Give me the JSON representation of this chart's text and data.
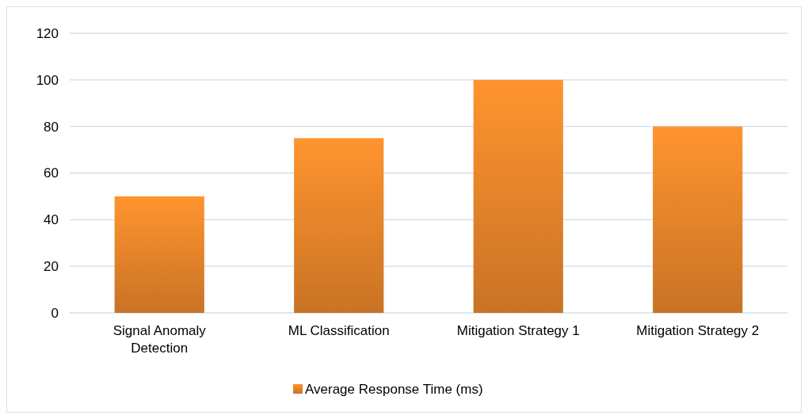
{
  "chart_data": {
    "type": "bar",
    "categories": [
      "Signal Anomaly Detection",
      "ML Classification",
      "Mitigation Strategy 1",
      "Mitigation Strategy 2"
    ],
    "series": [
      {
        "name": "Average Response Time (ms)",
        "color": "#f08a2c",
        "values": [
          50,
          75,
          100,
          80
        ]
      }
    ],
    "ylim": [
      0,
      120
    ],
    "yticks": [
      0,
      20,
      40,
      60,
      80,
      100,
      120
    ],
    "grid": "y",
    "legend": "bottom"
  }
}
